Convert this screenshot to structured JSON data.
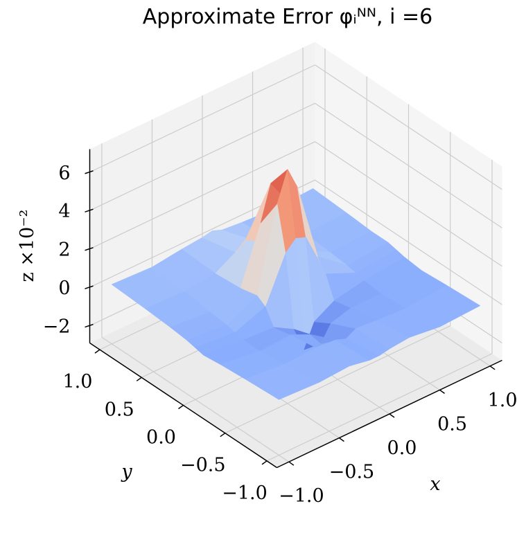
{
  "chart_data": {
    "type": "surface3d",
    "title": "Approximate Error φᵢᴺᴺ, i =6",
    "xlabel": "x",
    "ylabel": "y",
    "zlabel": "z ×10⁻²",
    "xlim": [
      -1.12,
      1.12
    ],
    "ylim": [
      -1.12,
      1.12
    ],
    "zlim": [
      -2.9,
      7.2
    ],
    "xticks": [
      {
        "value": -1,
        "label": "−1.0"
      },
      {
        "value": -0.5,
        "label": "−0.5"
      },
      {
        "value": 0,
        "label": "0.0"
      },
      0.5,
      {
        "value": 1,
        "label": "1.0"
      }
    ],
    "yticks": [
      {
        "value": -1,
        "label": "−1.0"
      },
      {
        "value": -0.5,
        "label": "−0.5"
      },
      {
        "value": 0,
        "label": "0.0"
      },
      0.5,
      {
        "value": 1,
        "label": "1.0"
      }
    ],
    "zticks": [
      {
        "value": -2,
        "label": "−2"
      },
      0,
      2,
      4,
      6
    ],
    "grid": true,
    "colormap": [
      "#3b4cc0",
      "#6282ea",
      "#8db0fe",
      "#b8d0f9",
      "#dddddd",
      "#f5c4ad",
      "#f49a7b",
      "#de604d",
      "#b40426"
    ],
    "x": [
      -1,
      -0.6,
      -0.3,
      -0.1,
      0,
      0.1,
      0.3,
      0.6,
      1
    ],
    "y": [
      -1,
      -0.6,
      -0.3,
      -0.1,
      0,
      0.1,
      0.3,
      0.6,
      1
    ],
    "z": [
      [
        0,
        -0.1,
        0,
        -0.2,
        -0.2,
        -0.1,
        0,
        -0.2,
        -0.1
      ],
      [
        -0.1,
        -0.3,
        -0.2,
        -0.3,
        -0.5,
        -0.2,
        -0.3,
        -0.4,
        -0.2
      ],
      [
        -0.2,
        -0.5,
        -0.4,
        -0.9,
        -1.6,
        -0.8,
        -0.5,
        -0.5,
        -0.3
      ],
      [
        -0.3,
        -0.5,
        -0.6,
        -1.2,
        -2.5,
        -1.3,
        -0.7,
        -0.4,
        -0.2
      ],
      [
        -0.2,
        -0.4,
        0.2,
        2.5,
        3.0,
        2.8,
        0.4,
        -0.3,
        -0.1
      ],
      [
        -0.1,
        -0.3,
        0.5,
        4.8,
        6.3,
        5.1,
        1.0,
        -0.2,
        0
      ],
      [
        0,
        -0.2,
        0.3,
        3.2,
        5.0,
        4.2,
        0.8,
        -0.1,
        0
      ],
      [
        0.1,
        0,
        0.2,
        0.8,
        1.2,
        0.9,
        0.3,
        0,
        0.1
      ],
      [
        0.2,
        0.1,
        0.3,
        0.4,
        0.5,
        0.3,
        0.2,
        0.1,
        0.2
      ]
    ]
  }
}
